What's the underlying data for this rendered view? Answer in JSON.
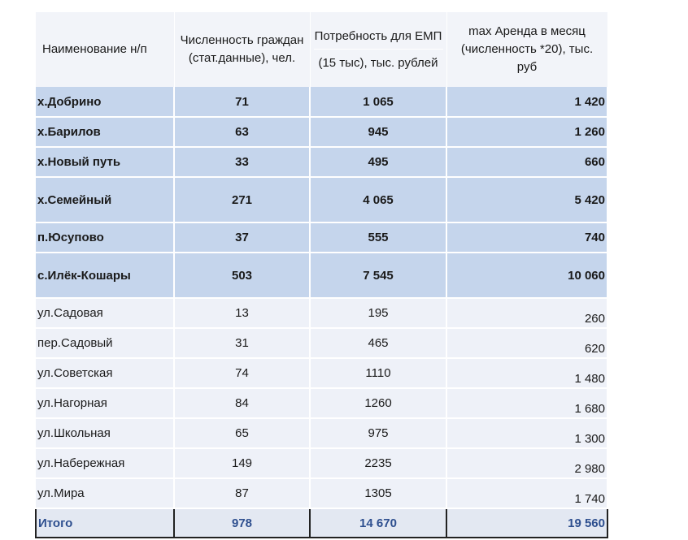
{
  "headers": {
    "name": "Наименование н/п",
    "population": "Численность граждан (стат.данные), чел.",
    "need_top": "Потребность для ЕМП",
    "need_bottom": "(15 тыс), тыс. рублей",
    "rent": "max Аренда в месяц (численность *20), тыс. руб"
  },
  "rows": [
    {
      "name": "х.Добрино",
      "population": "71",
      "need": "1 065",
      "rent": "1 420"
    },
    {
      "name": "х.Барилов",
      "population": "63",
      "need": "945",
      "rent": "1 260"
    },
    {
      "name": "х.Новый путь",
      "population": "33",
      "need": "495",
      "rent": "660"
    },
    {
      "name": "х.Семейный",
      "population": "271",
      "need": "4 065",
      "rent": "5 420"
    },
    {
      "name": "п.Юсупово",
      "population": "37",
      "need": "555",
      "rent": "740"
    },
    {
      "name": "с.Илёк-Кошары",
      "population": "503",
      "need": "7 545",
      "rent": "10 060"
    },
    {
      "name": "ул.Садовая",
      "population": "13",
      "need": "195",
      "rent": "260"
    },
    {
      "name": "пер.Садовый",
      "population": "31",
      "need": "465",
      "rent": "620"
    },
    {
      "name": "ул.Советская",
      "population": "74",
      "need": "1110",
      "rent": "1 480"
    },
    {
      "name": "ул.Нагорная",
      "population": "84",
      "need": "1260",
      "rent": "1 680"
    },
    {
      "name": "ул.Школьная",
      "population": "65",
      "need": "975",
      "rent": "1 300"
    },
    {
      "name": "ул.Набережная",
      "population": "149",
      "need": "2235",
      "rent": "2 980"
    },
    {
      "name": "ул.Мира",
      "population": "87",
      "need": "1305",
      "rent": "1 740"
    }
  ],
  "total": {
    "name": "Итого",
    "population": "978",
    "need": "14 670",
    "rent": "19 560"
  },
  "colors": {
    "highlight_row": "#c5d5ec",
    "plain_row": "#eef1f8",
    "total_text": "#2e4f8f"
  }
}
